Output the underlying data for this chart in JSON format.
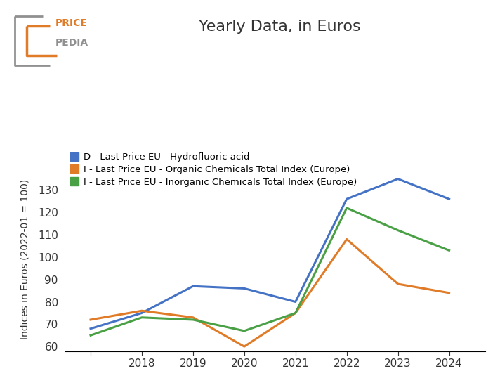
{
  "title": "Yearly Data, in Euros",
  "ylabel": "Indices in Euros (2022-01 = 100)",
  "years": [
    2017,
    2018,
    2019,
    2020,
    2021,
    2022,
    2023,
    2024
  ],
  "series": [
    {
      "label": "D - Last Price EU - Hydrofluoric acid",
      "color": "#4472c4",
      "values": [
        68,
        75,
        87,
        86,
        80,
        126,
        135,
        126
      ]
    },
    {
      "label": "I - Last Price EU - Organic Chemicals Total Index (Europe)",
      "color": "#e07b28",
      "values": [
        72,
        76,
        73,
        60,
        75,
        108,
        88,
        84
      ]
    },
    {
      "label": "I - Last Price EU - Inorganic Chemicals Total Index (Europe)",
      "color": "#4aa045",
      "values": [
        65,
        73,
        72,
        67,
        75,
        122,
        112,
        103
      ]
    }
  ],
  "ylim": [
    58,
    140
  ],
  "yticks": [
    60,
    70,
    80,
    90,
    100,
    110,
    120,
    130
  ],
  "xticks": [
    2017,
    2018,
    2019,
    2020,
    2021,
    2022,
    2023,
    2024
  ],
  "xticklabels": [
    "",
    "2018",
    "2019",
    "2020",
    "2021",
    "2022",
    "2023",
    "2024"
  ],
  "logo_gray": "#909090",
  "logo_orange": "#e07b28",
  "background_color": "#ffffff",
  "title_color": "#333333",
  "tick_color": "#333333"
}
